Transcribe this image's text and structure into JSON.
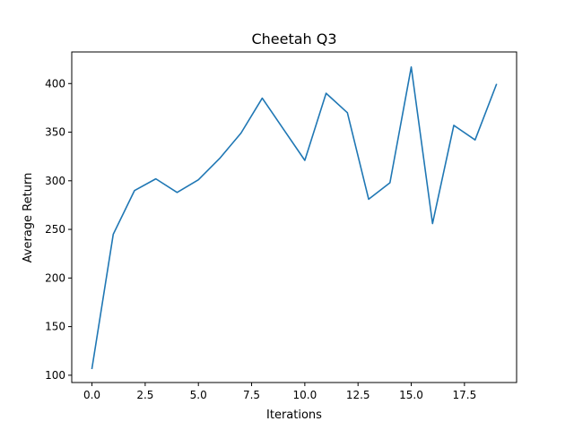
{
  "chart_data": {
    "type": "line",
    "title": "Cheetah Q3",
    "xlabel": "Iterations",
    "ylabel": "Average Return",
    "xlim": [
      -0.95,
      19.95
    ],
    "ylim": [
      92.5,
      432.5
    ],
    "xticks": [
      0.0,
      2.5,
      5.0,
      7.5,
      10.0,
      12.5,
      15.0,
      17.5
    ],
    "xtick_labels": [
      "0.0",
      "2.5",
      "5.0",
      "7.5",
      "10.0",
      "12.5",
      "15.0",
      "17.5"
    ],
    "yticks": [
      100,
      150,
      200,
      250,
      300,
      350,
      400
    ],
    "ytick_labels": [
      "100",
      "150",
      "200",
      "250",
      "300",
      "350",
      "400"
    ],
    "grid": false,
    "color": "#1f77b4",
    "series": [
      {
        "x": [
          0,
          1,
          2,
          3,
          4,
          5,
          6,
          7,
          8,
          9,
          10,
          11,
          12,
          13,
          14,
          15,
          16,
          17,
          18,
          19
        ],
        "y": [
          107,
          245,
          290,
          302,
          288,
          301,
          323,
          349,
          385,
          353,
          321,
          390,
          370,
          281,
          298,
          417,
          256,
          357,
          342,
          399
        ]
      }
    ]
  }
}
